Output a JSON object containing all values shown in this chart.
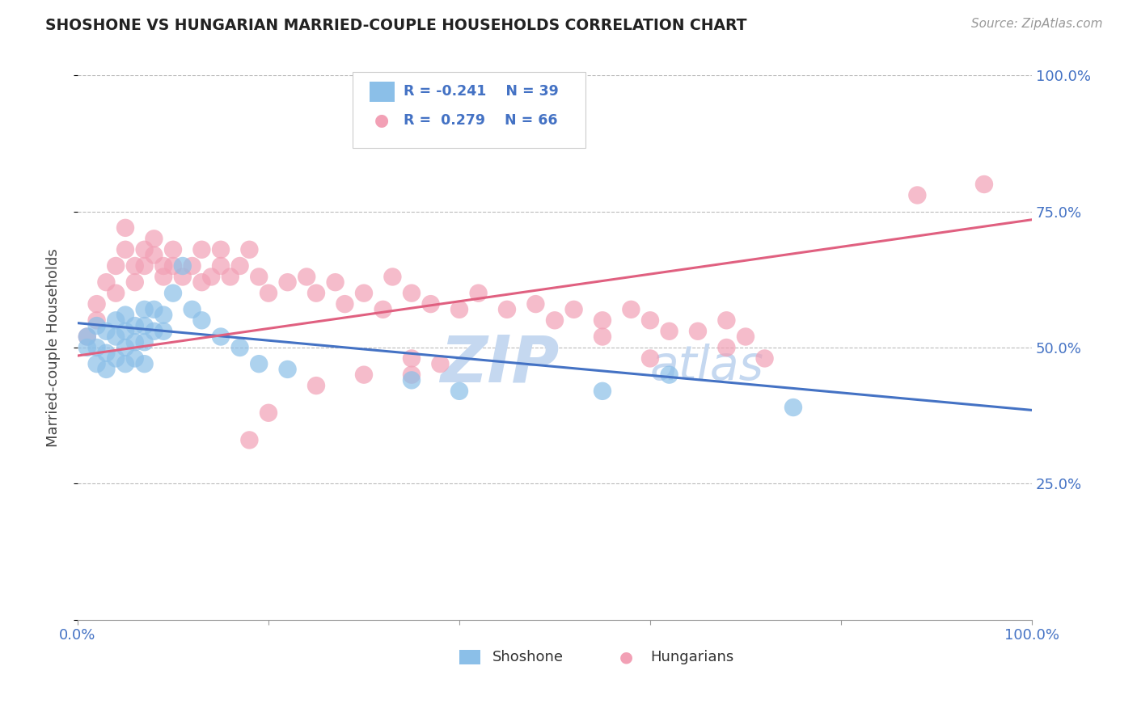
{
  "title": "SHOSHONE VS HUNGARIAN MARRIED-COUPLE HOUSEHOLDS CORRELATION CHART",
  "source": "Source: ZipAtlas.com",
  "ylabel": "Married-couple Households",
  "xlim": [
    0.0,
    1.0
  ],
  "ylim": [
    0.0,
    1.0
  ],
  "legend_r_shoshone": "R = -0.241",
  "legend_n_shoshone": "N = 39",
  "legend_r_hungarian": "R =  0.279",
  "legend_n_hungarian": "N = 66",
  "shoshone_color": "#8BBFE8",
  "hungarian_color": "#F2A0B5",
  "shoshone_line_color": "#4472C4",
  "hungarian_line_color": "#E06080",
  "watermark_zip": "ZIP",
  "watermark_atlas": "atlas",
  "watermark_color": "#C5D8F0",
  "shoshone_x": [
    0.01,
    0.01,
    0.02,
    0.02,
    0.02,
    0.03,
    0.03,
    0.03,
    0.04,
    0.04,
    0.04,
    0.05,
    0.05,
    0.05,
    0.05,
    0.06,
    0.06,
    0.06,
    0.07,
    0.07,
    0.07,
    0.07,
    0.08,
    0.08,
    0.09,
    0.09,
    0.1,
    0.11,
    0.12,
    0.13,
    0.15,
    0.17,
    0.19,
    0.22,
    0.35,
    0.4,
    0.55,
    0.62,
    0.75
  ],
  "shoshone_y": [
    0.52,
    0.5,
    0.54,
    0.5,
    0.47,
    0.53,
    0.49,
    0.46,
    0.55,
    0.52,
    0.48,
    0.56,
    0.53,
    0.5,
    0.47,
    0.54,
    0.51,
    0.48,
    0.57,
    0.54,
    0.51,
    0.47,
    0.57,
    0.53,
    0.56,
    0.53,
    0.6,
    0.65,
    0.57,
    0.55,
    0.52,
    0.5,
    0.47,
    0.46,
    0.44,
    0.42,
    0.42,
    0.45,
    0.39
  ],
  "hungarian_x": [
    0.01,
    0.02,
    0.02,
    0.03,
    0.04,
    0.04,
    0.05,
    0.05,
    0.06,
    0.06,
    0.07,
    0.07,
    0.08,
    0.08,
    0.09,
    0.09,
    0.1,
    0.1,
    0.11,
    0.12,
    0.13,
    0.13,
    0.14,
    0.15,
    0.15,
    0.16,
    0.17,
    0.18,
    0.19,
    0.2,
    0.22,
    0.24,
    0.25,
    0.27,
    0.28,
    0.3,
    0.32,
    0.33,
    0.35,
    0.37,
    0.4,
    0.42,
    0.45,
    0.48,
    0.5,
    0.52,
    0.55,
    0.58,
    0.6,
    0.62,
    0.65,
    0.68,
    0.7,
    0.35,
    0.25,
    0.3,
    0.2,
    0.18,
    0.35,
    0.38,
    0.55,
    0.6,
    0.68,
    0.72,
    0.88,
    0.95
  ],
  "hungarian_y": [
    0.52,
    0.58,
    0.55,
    0.62,
    0.6,
    0.65,
    0.68,
    0.72,
    0.65,
    0.62,
    0.68,
    0.65,
    0.7,
    0.67,
    0.65,
    0.63,
    0.68,
    0.65,
    0.63,
    0.65,
    0.62,
    0.68,
    0.63,
    0.68,
    0.65,
    0.63,
    0.65,
    0.68,
    0.63,
    0.6,
    0.62,
    0.63,
    0.6,
    0.62,
    0.58,
    0.6,
    0.57,
    0.63,
    0.6,
    0.58,
    0.57,
    0.6,
    0.57,
    0.58,
    0.55,
    0.57,
    0.55,
    0.57,
    0.55,
    0.53,
    0.53,
    0.55,
    0.52,
    0.48,
    0.43,
    0.45,
    0.38,
    0.33,
    0.45,
    0.47,
    0.52,
    0.48,
    0.5,
    0.48,
    0.78,
    0.8
  ]
}
